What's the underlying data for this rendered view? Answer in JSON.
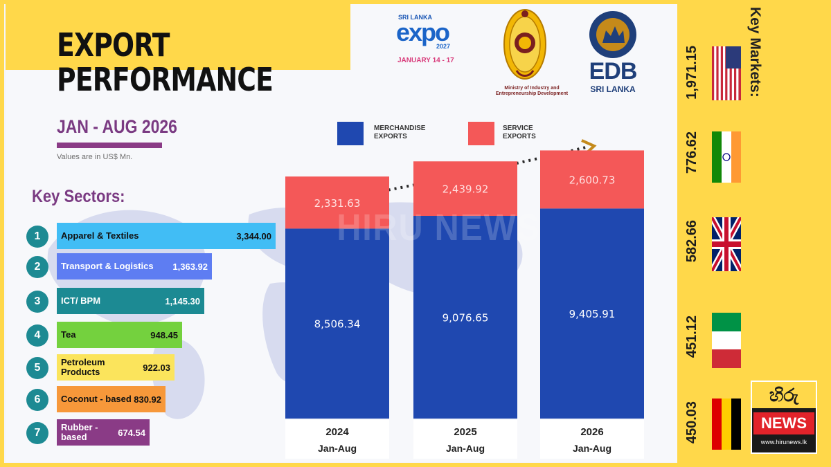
{
  "header": {
    "title_line1": "EXPORT",
    "title_line2": "PERFORMANCE",
    "period": "JAN - AUG 2026",
    "units_note": "Values are in US$ Mn."
  },
  "logos": {
    "expo": {
      "small": "SRI LANKA",
      "word": "expo",
      "year": "2027",
      "dates": "JANUARY 14 - 17"
    },
    "ministry": {
      "text": "Ministry of Industry and Entrepreneurship Development"
    },
    "edb": {
      "word": "EDB",
      "sub": "SRI LANKA"
    },
    "hiru": {
      "top": "හිරු",
      "news": "NEWS",
      "url": "www.hirunews.lk"
    }
  },
  "watermark": "HIRU NEWS",
  "key_sectors": {
    "title": "Key Sectors:",
    "items": [
      {
        "rank": "1",
        "name": "Apparel & Textiles",
        "value": "3,344.00",
        "color": "#41bdf5",
        "text_color": "#111111"
      },
      {
        "rank": "2",
        "name": "Transport & Logistics",
        "value": "1,363.92",
        "color": "#5e7df2",
        "text_color": "#ffffff"
      },
      {
        "rank": "3",
        "name": "ICT/ BPM",
        "value": "1,145.30",
        "color": "#1c8a93",
        "text_color": "#ffffff"
      },
      {
        "rank": "4",
        "name": "Tea",
        "value": "948.45",
        "color": "#74d13e",
        "text_color": "#111111"
      },
      {
        "rank": "5",
        "name": "Petroleum Products",
        "value": "922.03",
        "color": "#fbe45c",
        "text_color": "#111111"
      },
      {
        "rank": "6",
        "name": "Coconut - based",
        "value": "830.92",
        "color": "#f7983a",
        "text_color": "#111111"
      },
      {
        "rank": "7",
        "name": "Rubber - based",
        "value": "674.54",
        "color": "#8a3b86",
        "text_color": "#ffffff"
      }
    ]
  },
  "legend": {
    "merch": {
      "label": "MERCHANDISE EXPORTS",
      "color": "#1f48b0"
    },
    "service": {
      "label": "SERVICE EXPORTS",
      "color": "#f45858"
    }
  },
  "key_markets": {
    "title": "Key Markets:",
    "items": [
      {
        "country": "USA",
        "value": "1,971.15",
        "flag": "usa-flag"
      },
      {
        "country": "India",
        "value": "776.62",
        "flag": "india-flag"
      },
      {
        "country": "UK",
        "value": "582.66",
        "flag": "uk-flag"
      },
      {
        "country": "Italy",
        "value": "451.12",
        "flag": "italy-flag"
      },
      {
        "country": "Germany",
        "value": "450.03",
        "flag": "germany-flag"
      }
    ]
  },
  "chart_data": {
    "type": "bar",
    "stacked": true,
    "categories": [
      "2024",
      "2025",
      "2026"
    ],
    "category_sublabels": [
      "Jan-Aug",
      "Jan-Aug",
      "Jan-Aug"
    ],
    "series": [
      {
        "name": "MERCHANDISE EXPORTS",
        "values": [
          8506.34,
          9076.65,
          9405.91
        ],
        "labels": [
          "8,506.34",
          "9,076.65",
          "9,405.91"
        ],
        "color": "#1f48b0"
      },
      {
        "name": "SERVICE EXPORTS",
        "values": [
          2331.63,
          2439.92,
          2600.73
        ],
        "labels": [
          "2,331.63",
          "2,439.92",
          "2,600.73"
        ],
        "color": "#f45858"
      }
    ],
    "ylim": [
      0,
      12500
    ],
    "grid": false,
    "legend": "top"
  }
}
